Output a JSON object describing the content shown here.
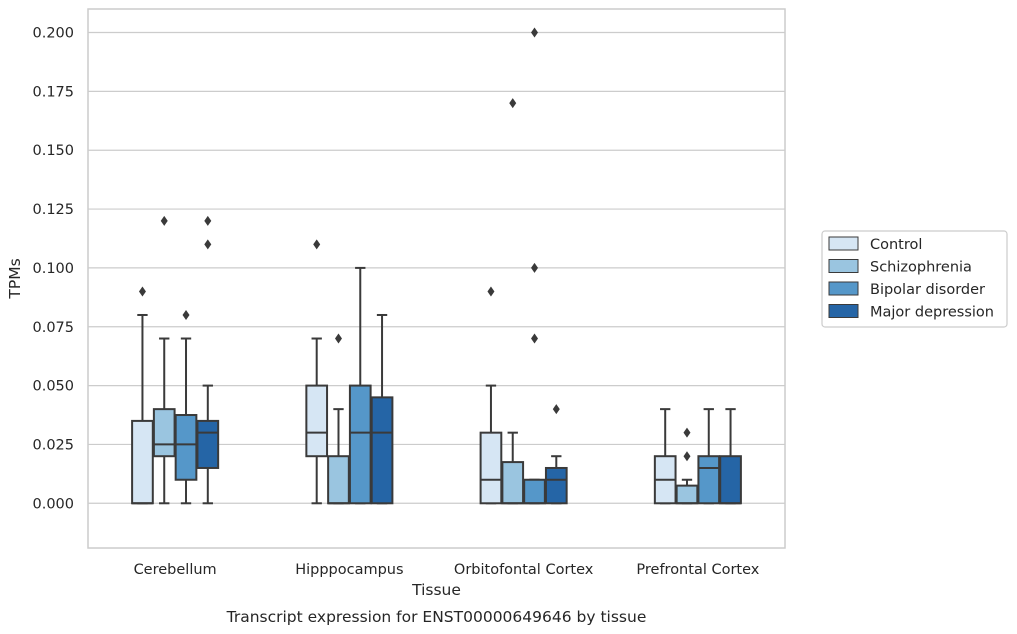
{
  "chart_data": {
    "type": "box",
    "caption": "Transcript expression for ENST00000649646 by tissue",
    "xlabel": "Tissue",
    "ylabel": "TPMs",
    "ylim": [
      -0.019,
      0.21
    ],
    "yticks": [
      0.0,
      0.025,
      0.05,
      0.075,
      0.1,
      0.125,
      0.15,
      0.175,
      0.2
    ],
    "ytick_labels": [
      "0.000",
      "0.025",
      "0.050",
      "0.075",
      "0.100",
      "0.125",
      "0.150",
      "0.175",
      "0.200"
    ],
    "grid": "horizontal",
    "legend_position": "right, outside plot",
    "categories": [
      "Cerebellum",
      "Hipppocampus",
      "Orbitofontal Cortex",
      "Prefrontal Cortex"
    ],
    "series": [
      {
        "name": "Control",
        "color": "#d6e6f4",
        "boxes": [
          {
            "whisker_low": 0.0,
            "q1": 0.0,
            "median": 0.0,
            "q3": 0.035,
            "whisker_high": 0.08,
            "outliers": [
              0.09
            ]
          },
          {
            "whisker_low": 0.0,
            "q1": 0.02,
            "median": 0.03,
            "q3": 0.05,
            "whisker_high": 0.07,
            "outliers": [
              0.11
            ]
          },
          {
            "whisker_low": 0.0,
            "q1": 0.0,
            "median": 0.01,
            "q3": 0.03,
            "whisker_high": 0.05,
            "outliers": [
              0.09
            ]
          },
          {
            "whisker_low": 0.0,
            "q1": 0.0,
            "median": 0.01,
            "q3": 0.02,
            "whisker_high": 0.04,
            "outliers": []
          }
        ]
      },
      {
        "name": "Schizophrenia",
        "color": "#9ac5e0",
        "boxes": [
          {
            "whisker_low": 0.0,
            "q1": 0.02,
            "median": 0.025,
            "q3": 0.04,
            "whisker_high": 0.07,
            "outliers": [
              0.12
            ]
          },
          {
            "whisker_low": 0.0,
            "q1": 0.0,
            "median": 0.0,
            "q3": 0.02,
            "whisker_high": 0.04,
            "outliers": [
              0.07
            ]
          },
          {
            "whisker_low": 0.0,
            "q1": 0.0,
            "median": 0.0,
            "q3": 0.0175,
            "whisker_high": 0.03,
            "outliers": [
              0.17
            ]
          },
          {
            "whisker_low": 0.0,
            "q1": 0.0,
            "median": 0.0,
            "q3": 0.0075,
            "whisker_high": 0.01,
            "outliers": [
              0.02,
              0.03
            ]
          }
        ]
      },
      {
        "name": "Bipolar disorder",
        "color": "#5597c9",
        "boxes": [
          {
            "whisker_low": 0.0,
            "q1": 0.01,
            "median": 0.025,
            "q3": 0.0375,
            "whisker_high": 0.07,
            "outliers": [
              0.08
            ]
          },
          {
            "whisker_low": 0.0,
            "q1": 0.0,
            "median": 0.03,
            "q3": 0.05,
            "whisker_high": 0.1,
            "outliers": []
          },
          {
            "whisker_low": 0.0,
            "q1": 0.0,
            "median": 0.0,
            "q3": 0.01,
            "whisker_high": 0.01,
            "outliers": [
              0.07,
              0.1,
              0.2
            ]
          },
          {
            "whisker_low": 0.0,
            "q1": 0.0,
            "median": 0.015,
            "q3": 0.02,
            "whisker_high": 0.04,
            "outliers": []
          }
        ]
      },
      {
        "name": "Major depression",
        "color": "#2565a6",
        "boxes": [
          {
            "whisker_low": 0.0,
            "q1": 0.015,
            "median": 0.03,
            "q3": 0.035,
            "whisker_high": 0.05,
            "outliers": [
              0.11,
              0.12
            ]
          },
          {
            "whisker_low": 0.0,
            "q1": 0.0,
            "median": 0.03,
            "q3": 0.045,
            "whisker_high": 0.08,
            "outliers": []
          },
          {
            "whisker_low": 0.0,
            "q1": 0.0,
            "median": 0.01,
            "q3": 0.015,
            "whisker_high": 0.02,
            "outliers": [
              0.04
            ]
          },
          {
            "whisker_low": 0.0,
            "q1": 0.0,
            "median": 0.0,
            "q3": 0.02,
            "whisker_high": 0.04,
            "outliers": []
          }
        ]
      }
    ],
    "colors": {
      "line": "#3a3a3a",
      "grid": "#cccccc",
      "frame": "#cccccc"
    }
  }
}
